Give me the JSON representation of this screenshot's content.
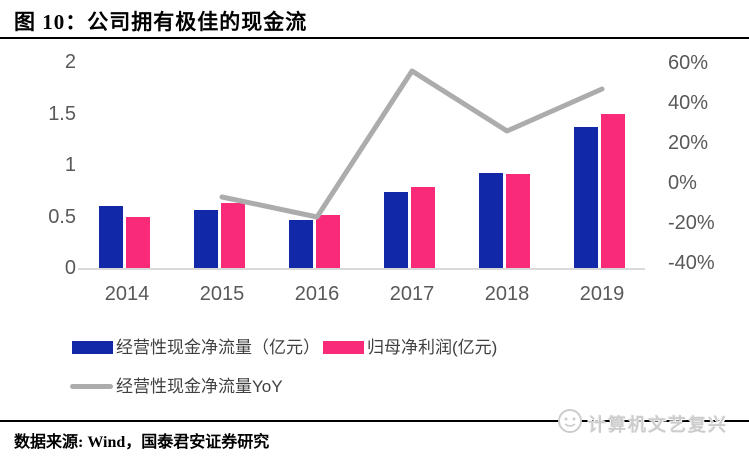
{
  "title": "图 10：公司拥有极佳的现金流",
  "source": "数据来源: Wind，国泰君安证券研究",
  "watermark": {
    "text": "计算机文艺复兴",
    "logo": "cartoon-face-logo"
  },
  "colors": {
    "bar_operating_cash": "#1129a9",
    "bar_net_profit": "#f92b78",
    "yoy_line": "#acacac",
    "axis_text": "#595959",
    "axis_line": "#d9d9d9",
    "title_text": "#000000",
    "watermark_text": "#cccccc"
  },
  "legend": {
    "item1": "经营性现金净流量（亿元）",
    "item2": "归母净利润(亿元)",
    "item3": "经营性现金净流量YoY"
  },
  "chart_data": {
    "type": "bar",
    "subtype": "bar+line-combo",
    "categories": [
      "2014",
      "2015",
      "2016",
      "2017",
      "2018",
      "2019"
    ],
    "series": [
      {
        "name": "经营性现金净流量（亿元）",
        "type": "bar",
        "axis": "left",
        "color": "#1129a9",
        "values": [
          0.61,
          0.57,
          0.47,
          0.74,
          0.93,
          1.37
        ]
      },
      {
        "name": "归母净利润(亿元)",
        "type": "bar",
        "axis": "left",
        "color": "#f92b78",
        "values": [
          0.5,
          0.64,
          0.52,
          0.79,
          0.92,
          1.5
        ]
      },
      {
        "name": "经营性现金净流量YoY",
        "type": "line",
        "axis": "right",
        "color": "#acacac",
        "unit": "%",
        "values": [
          null,
          -7,
          -17,
          56,
          26,
          47
        ]
      }
    ],
    "title": "公司拥有极佳的现金流",
    "xlabel": "",
    "ylabel": "",
    "left_axis": {
      "min": 0,
      "max": 2,
      "ticks": [
        "2",
        "1.5",
        "1",
        "0.5",
        "0"
      ]
    },
    "right_axis": {
      "min": -40,
      "max": 60,
      "ticks": [
        "60%",
        "40%",
        "20%",
        "0%",
        "-20%",
        "-40%"
      ]
    },
    "grid": false,
    "legend_position": "bottom"
  }
}
